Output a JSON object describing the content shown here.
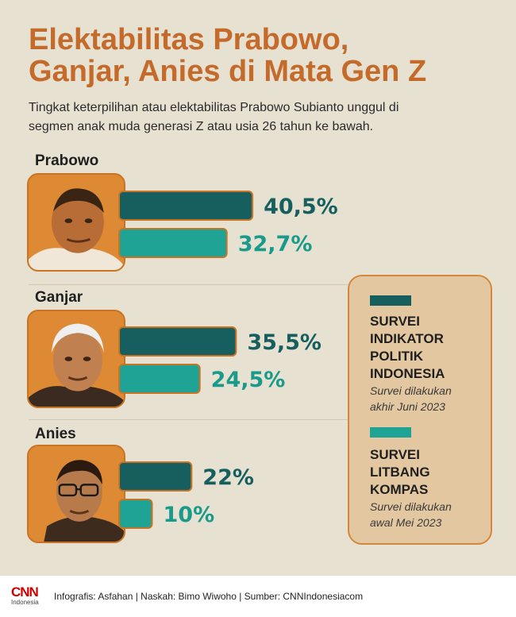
{
  "title_line1": "Elektabilitas Prabowo,",
  "title_line2": "Ganjar, Anies di Mata Gen Z",
  "subtitle_line1": "Tingkat keterpilihan atau elektabilitas Prabowo Subianto unggul di",
  "subtitle_line2": "segmen anak muda generasi Z atau usia 26 tahun ke bawah.",
  "legend": {
    "items": [
      {
        "title_lines": [
          "SURVEI",
          "INDIKATOR",
          "POLITIK",
          "INDONESIA"
        ],
        "note_lines": [
          "Survei dilakukan",
          "akhir Juni 2023"
        ]
      },
      {
        "title_lines": [
          "SURVEI",
          "LITBANG",
          "KOMPAS"
        ],
        "note_lines": [
          "Survei dilakukan",
          "awal Mei 2023"
        ]
      }
    ]
  },
  "footer": {
    "logo_main": "CNN",
    "logo_sub": "Indonesia",
    "credits": "Infografis: Asfahan | Naskah: Bimo Wiwoho | Sumber: CNNIndonesiacom"
  },
  "colors": {
    "series1": "#165f5e",
    "series2": "#1fa394",
    "bar_border": "#c97424",
    "title": "#c46b2c"
  },
  "chart_data": {
    "type": "bar",
    "orientation": "horizontal",
    "title": "Elektabilitas Prabowo, Ganjar, Anies di Mata Gen Z",
    "categories": [
      "Prabowo",
      "Ganjar",
      "Anies"
    ],
    "series": [
      {
        "name": "SURVEI INDIKATOR POLITIK INDONESIA",
        "values": [
          40.5,
          35.5,
          22
        ],
        "labels": [
          "40,5%",
          "35,5%",
          "22%"
        ]
      },
      {
        "name": "SURVEI LITBANG KOMPAS",
        "values": [
          32.7,
          24.5,
          10
        ],
        "labels": [
          "32,7%",
          "24,5%",
          "10%"
        ]
      }
    ],
    "value_unit": "%",
    "legend_position": "right"
  }
}
